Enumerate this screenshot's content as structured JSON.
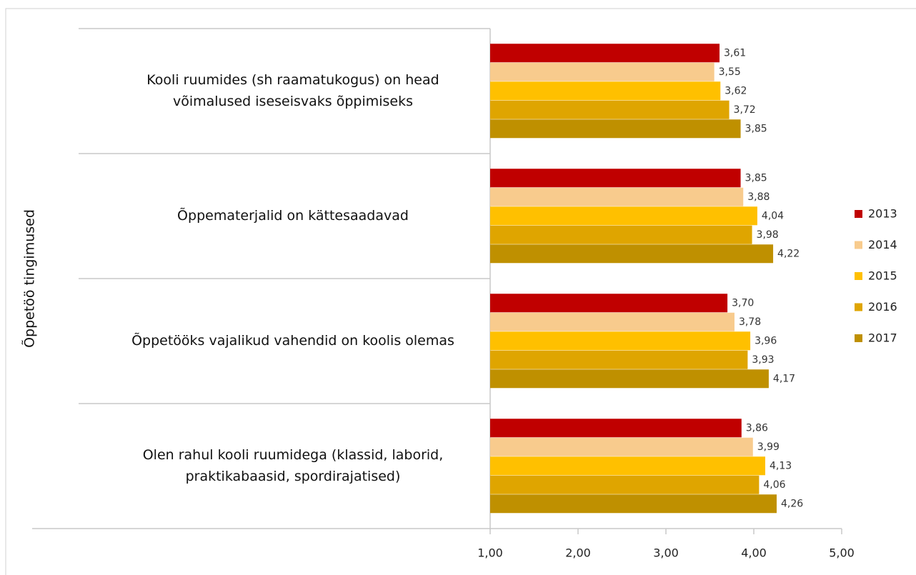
{
  "chart_data": {
    "type": "barh",
    "y_label": "Õppetöö tingimused",
    "categories": [
      [
        "Kooli ruumides (sh raamatukogus) on head",
        "võimalused iseseisvaks õppimiseks"
      ],
      [
        "Õppematerjalid on kättesaadavad"
      ],
      [
        "Õppetööks vajalikud vahendid on koolis olemas"
      ],
      [
        "Olen rahul kooli ruumidega (klassid, laborid,",
        "praktikabaasid, spordirajatised)"
      ]
    ],
    "series": [
      {
        "name": "2013",
        "color": "#c00000",
        "values": [
          3.61,
          3.85,
          3.7,
          3.86
        ],
        "value_labels": [
          "3,61",
          "3,85",
          "3,70",
          "3,86"
        ]
      },
      {
        "name": "2014",
        "color": "#f8cb8d",
        "values": [
          3.55,
          3.88,
          3.78,
          3.99
        ],
        "value_labels": [
          "3,55",
          "3,88",
          "3,78",
          "3,99"
        ]
      },
      {
        "name": "2015",
        "color": "#ffc000",
        "values": [
          3.62,
          4.04,
          3.96,
          4.13
        ],
        "value_labels": [
          "3,62",
          "4,04",
          "3,96",
          "4,13"
        ]
      },
      {
        "name": "2016",
        "color": "#dfa500",
        "values": [
          3.72,
          3.98,
          3.93,
          4.06
        ],
        "value_labels": [
          "3,72",
          "3,98",
          "3,93",
          "4,06"
        ]
      },
      {
        "name": "2017",
        "color": "#bf9000",
        "values": [
          3.85,
          4.22,
          4.17,
          4.26
        ],
        "value_labels": [
          "3,85",
          "4,22",
          "4,17",
          "4,26"
        ]
      }
    ],
    "xlim": [
      1,
      5
    ],
    "xticks": [
      {
        "value": 1,
        "label": "1,00"
      },
      {
        "value": 2,
        "label": "2,00"
      },
      {
        "value": 3,
        "label": "3,00"
      },
      {
        "value": 4,
        "label": "4,00"
      },
      {
        "value": 5,
        "label": "5,00"
      }
    ],
    "legend": "right"
  }
}
